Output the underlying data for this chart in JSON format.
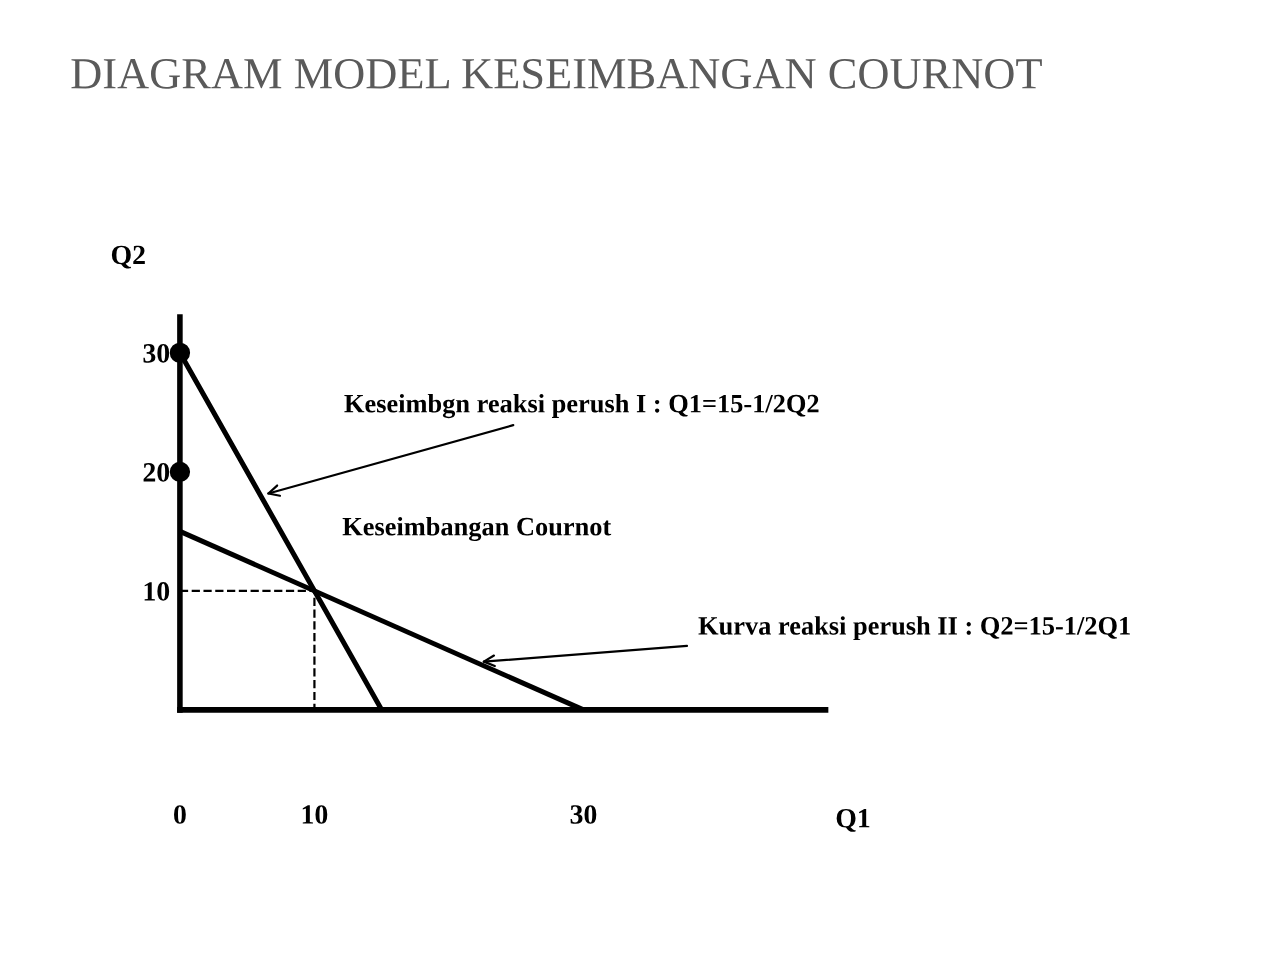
{
  "chart_data": {
    "type": "line",
    "title": "DIAGRAM MODEL KESEIMBANGAN COURNOT",
    "xlabel": "Q1",
    "ylabel": "Q2",
    "series": [
      {
        "x": [
          0,
          15
        ],
        "values": [
          30,
          0
        ],
        "color": "#000000",
        "line_style": "solid"
      },
      {
        "x": [
          0,
          30
        ],
        "values": [
          15,
          0
        ],
        "color": "#000000",
        "line_style": "solid"
      },
      {
        "x": [
          0,
          10,
          10
        ],
        "values": [
          10,
          10,
          0
        ],
        "color": "#000000",
        "line_style": "dashed"
      },
      {
        "type": "scatter",
        "x": [
          0,
          0
        ],
        "values": [
          30,
          20
        ],
        "color": "#000000",
        "marker": "circle"
      }
    ],
    "annotations": [
      {
        "text": "Keseimbgn reaksi perush I : Q1=15-1/2Q2",
        "x": 6,
        "y": 18
      },
      {
        "text": "Keseimbangan Cournot",
        "x": 10,
        "y": 10
      },
      {
        "text": "Kurva reaksi perush II : Q2=15-1/2Q1",
        "x": 22,
        "y": 4
      }
    ],
    "xlim": [
      0,
      48
    ],
    "ylim": [
      0,
      33
    ],
    "xticks": [
      0,
      10,
      30
    ],
    "yticks": [
      10,
      20,
      30
    ],
    "grid": false,
    "legend": false
  }
}
